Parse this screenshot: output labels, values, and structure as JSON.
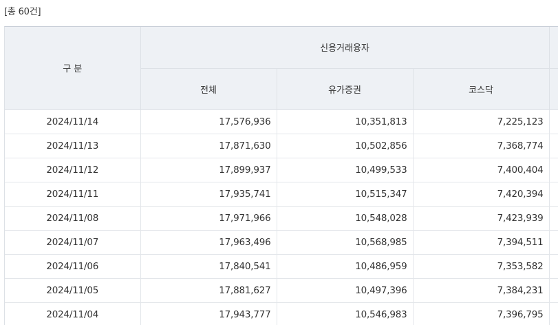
{
  "summary": {
    "total_label": "[총 60건]"
  },
  "table": {
    "headers": {
      "category": "구 분",
      "group": "신용거래융자",
      "total": "전체",
      "kospi": "유가증권",
      "kosdaq": "코스닥"
    },
    "rows": [
      {
        "date": "2024/11/14",
        "total": "17,576,936",
        "kospi": "10,351,813",
        "kosdaq": "7,225,123"
      },
      {
        "date": "2024/11/13",
        "total": "17,871,630",
        "kospi": "10,502,856",
        "kosdaq": "7,368,774"
      },
      {
        "date": "2024/11/12",
        "total": "17,899,937",
        "kospi": "10,499,533",
        "kosdaq": "7,400,404"
      },
      {
        "date": "2024/11/11",
        "total": "17,935,741",
        "kospi": "10,515,347",
        "kosdaq": "7,420,394"
      },
      {
        "date": "2024/11/08",
        "total": "17,971,966",
        "kospi": "10,548,028",
        "kosdaq": "7,423,939"
      },
      {
        "date": "2024/11/07",
        "total": "17,963,496",
        "kospi": "10,568,985",
        "kosdaq": "7,394,511"
      },
      {
        "date": "2024/11/06",
        "total": "17,840,541",
        "kospi": "10,486,959",
        "kosdaq": "7,353,582"
      },
      {
        "date": "2024/11/05",
        "total": "17,881,627",
        "kospi": "10,497,396",
        "kosdaq": "7,384,231"
      },
      {
        "date": "2024/11/04",
        "total": "17,943,777",
        "kospi": "10,546,983",
        "kosdaq": "7,396,795"
      }
    ]
  }
}
